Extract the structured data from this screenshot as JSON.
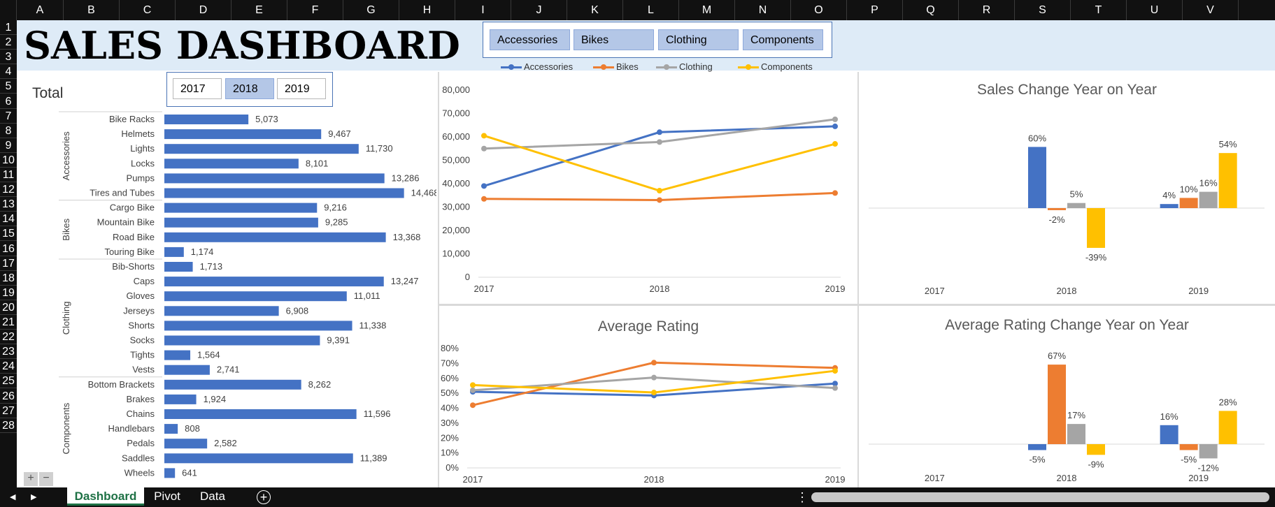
{
  "columns": [
    "A",
    "B",
    "C",
    "D",
    "E",
    "F",
    "G",
    "H",
    "I",
    "J",
    "K",
    "L",
    "M",
    "N",
    "O",
    "P",
    "Q",
    "R",
    "S",
    "T",
    "U",
    "V"
  ],
  "rows": [
    "1",
    "2",
    "3",
    "4",
    "5",
    "6",
    "7",
    "8",
    "9",
    "10",
    "11",
    "12",
    "13",
    "14",
    "15",
    "16",
    "17",
    "18",
    "19",
    "20",
    "21",
    "22",
    "23",
    "24",
    "25",
    "26",
    "27",
    "28"
  ],
  "title": "SALES DASHBOARD",
  "total_label": "Total",
  "year_slicer": {
    "items": [
      "2017",
      "2018",
      "2019"
    ],
    "selected": "2018"
  },
  "category_slicer": {
    "items": [
      "Accessories",
      "Bikes",
      "Clothing",
      "Components"
    ]
  },
  "colors": {
    "Accessories": "#4472c4",
    "Bikes": "#ed7d31",
    "Clothing": "#a5a5a5",
    "Components": "#ffc000"
  },
  "legend": [
    "Accessories",
    "Bikes",
    "Clothing",
    "Components"
  ],
  "sheet_tabs": [
    "Dashboard",
    "Pivot",
    "Data"
  ],
  "active_tab": "Dashboard",
  "controls": {
    "plus": "+",
    "minus": "−",
    "add_sheet": "+",
    "menu": "⋮"
  },
  "chart_data": [
    {
      "id": "total",
      "type": "bar",
      "groups": [
        {
          "name": "Accessories",
          "items": [
            {
              "label": "Bike Racks",
              "value": 5073,
              "text": "5,073"
            },
            {
              "label": "Helmets",
              "value": 9467,
              "text": "9,467"
            },
            {
              "label": "Lights",
              "value": 11730,
              "text": "11,730"
            },
            {
              "label": "Locks",
              "value": 8101,
              "text": "8,101"
            },
            {
              "label": "Pumps",
              "value": 13286,
              "text": "13,286"
            },
            {
              "label": "Tires and Tubes",
              "value": 14468,
              "text": "14,468"
            }
          ]
        },
        {
          "name": "Bikes",
          "items": [
            {
              "label": "Cargo Bike",
              "value": 9216,
              "text": "9,216"
            },
            {
              "label": "Mountain Bike",
              "value": 9285,
              "text": "9,285"
            },
            {
              "label": "Road Bike",
              "value": 13368,
              "text": "13,368"
            },
            {
              "label": "Touring Bike",
              "value": 1174,
              "text": "1,174"
            }
          ]
        },
        {
          "name": "Clothing",
          "items": [
            {
              "label": "Bib-Shorts",
              "value": 1713,
              "text": "1,713"
            },
            {
              "label": "Caps",
              "value": 13247,
              "text": "13,247"
            },
            {
              "label": "Gloves",
              "value": 11011,
              "text": "11,011"
            },
            {
              "label": "Jerseys",
              "value": 6908,
              "text": "6,908"
            },
            {
              "label": "Shorts",
              "value": 11338,
              "text": "11,338"
            },
            {
              "label": "Socks",
              "value": 9391,
              "text": "9,391"
            },
            {
              "label": "Tights",
              "value": 1564,
              "text": "1,564"
            },
            {
              "label": "Vests",
              "value": 2741,
              "text": "2,741"
            }
          ]
        },
        {
          "name": "Components",
          "items": [
            {
              "label": "Bottom Brackets",
              "value": 8262,
              "text": "8,262"
            },
            {
              "label": "Brakes",
              "value": 1924,
              "text": "1,924"
            },
            {
              "label": "Chains",
              "value": 11596,
              "text": "11,596"
            },
            {
              "label": "Handlebars",
              "value": 808,
              "text": "808"
            },
            {
              "label": "Pedals",
              "value": 2582,
              "text": "2,582"
            },
            {
              "label": "Saddles",
              "value": 11389,
              "text": "11,389"
            },
            {
              "label": "Wheels",
              "value": 641,
              "text": "641"
            }
          ]
        }
      ]
    },
    {
      "id": "sales",
      "type": "line",
      "title": "",
      "x": [
        "2017",
        "2018",
        "2019"
      ],
      "ylim": [
        0,
        80000
      ],
      "yticks": [
        "0",
        "10,000",
        "20,000",
        "30,000",
        "40,000",
        "50,000",
        "60,000",
        "70,000",
        "80,000"
      ],
      "series": [
        {
          "name": "Accessories",
          "values": [
            39000,
            62000,
            64500
          ]
        },
        {
          "name": "Bikes",
          "values": [
            33500,
            33000,
            36000
          ]
        },
        {
          "name": "Clothing",
          "values": [
            55000,
            57800,
            67500
          ]
        },
        {
          "name": "Components",
          "values": [
            60500,
            37000,
            57000
          ]
        }
      ]
    },
    {
      "id": "sales_change",
      "type": "bar",
      "title": "Sales Change Year on Year",
      "x": [
        "2017",
        "2018",
        "2019"
      ],
      "ylim": [
        -0.5,
        0.75
      ],
      "series": [
        {
          "name": "Accessories",
          "values": [
            null,
            0.6,
            0.04
          ],
          "labels": [
            "",
            "60%",
            "4%"
          ]
        },
        {
          "name": "Bikes",
          "values": [
            null,
            -0.02,
            0.1
          ],
          "labels": [
            "",
            "-2%",
            "10%"
          ]
        },
        {
          "name": "Clothing",
          "values": [
            null,
            0.05,
            0.16
          ],
          "labels": [
            "",
            "5%",
            "16%"
          ]
        },
        {
          "name": "Components",
          "values": [
            null,
            -0.39,
            0.54
          ],
          "labels": [
            "",
            "-39%",
            "54%"
          ]
        }
      ]
    },
    {
      "id": "rating",
      "type": "line",
      "title": "Average Rating",
      "x": [
        "2017",
        "2018",
        "2019"
      ],
      "ylim": [
        0,
        0.8
      ],
      "yticks": [
        "0%",
        "10%",
        "20%",
        "30%",
        "40%",
        "50%",
        "60%",
        "70%",
        "80%"
      ],
      "series": [
        {
          "name": "Accessories",
          "values": [
            0.51,
            0.485,
            0.565
          ]
        },
        {
          "name": "Bikes",
          "values": [
            0.42,
            0.705,
            0.67
          ]
        },
        {
          "name": "Clothing",
          "values": [
            0.52,
            0.605,
            0.535
          ]
        },
        {
          "name": "Components",
          "values": [
            0.555,
            0.505,
            0.65
          ]
        }
      ]
    },
    {
      "id": "rating_change",
      "type": "bar",
      "title": "Average Rating Change Year on Year",
      "x": [
        "2017",
        "2018",
        "2019"
      ],
      "ylim": [
        -0.3,
        0.8
      ],
      "series": [
        {
          "name": "Accessories",
          "values": [
            null,
            -0.05,
            0.16
          ],
          "labels": [
            "",
            "-5%",
            "16%"
          ]
        },
        {
          "name": "Bikes",
          "values": [
            null,
            0.67,
            -0.05
          ],
          "labels": [
            "",
            "67%",
            "-5%"
          ]
        },
        {
          "name": "Clothing",
          "values": [
            null,
            0.17,
            -0.12
          ],
          "labels": [
            "",
            "17%",
            "-12%"
          ]
        },
        {
          "name": "Components",
          "values": [
            null,
            -0.09,
            0.28
          ],
          "labels": [
            "",
            "-9%",
            "28%"
          ]
        }
      ]
    }
  ]
}
